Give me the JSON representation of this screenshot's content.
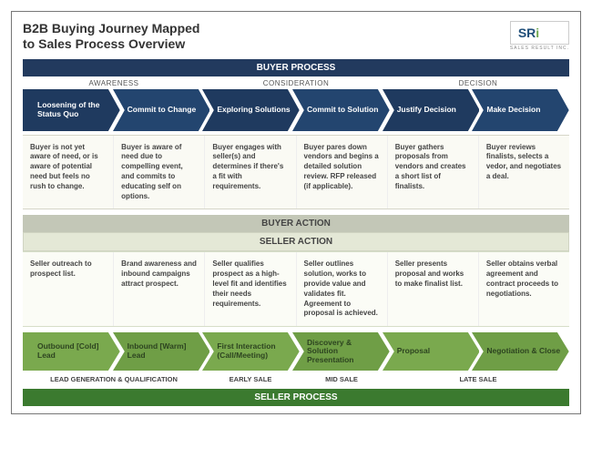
{
  "title_line1": "B2B Buying Journey Mapped",
  "title_line2": "to Sales Process Overview",
  "logo": {
    "text_dark": "SR",
    "text_accent": "i",
    "sub": "SALES RESULT INC."
  },
  "bars": {
    "buyer_process": "BUYER PROCESS",
    "buyer_action": "BUYER ACTION",
    "seller_action": "SELLER ACTION",
    "seller_process": "SELLER PROCESS"
  },
  "buyer_phases": [
    "AWARENESS",
    "CONSIDERATION",
    "DECISION"
  ],
  "buyer_stages": [
    {
      "label": "Loosening of the Status Quo",
      "fill": "#1f3a5f"
    },
    {
      "label": "Commit to Change",
      "fill": "#23456f"
    },
    {
      "label": "Exploring Solutions",
      "fill": "#1f3a5f"
    },
    {
      "label": "Commit to Solution",
      "fill": "#23456f"
    },
    {
      "label": "Justify Decision",
      "fill": "#1f3a5f"
    },
    {
      "label": "Make Decision",
      "fill": "#23456f"
    }
  ],
  "buyer_desc": [
    "Buyer is not yet aware of need, or is aware of potential need but feels no rush to change.",
    "Buyer is aware of need due to compelling event, and commits to educating self on options.",
    "Buyer engages with seller(s) and determines if there's a fit with requirements.",
    "Buyer pares down vendors and begins a detailed solution review. RFP released (if applicable).",
    "Buyer gathers proposals from vendors and creates a short list of finalists.",
    "Buyer reviews finalists, selects a vedor, and negotiates a deal."
  ],
  "seller_desc": [
    "Seller outreach to prospect list.",
    "Brand awareness and inbound campaigns attract prospect.",
    "Seller qualifies prospect as a high-level fit and identifies their needs requirements.",
    "Seller outlines solution, works to provide value and validates fit. Agreement to proposal is achieved.",
    "Seller presents proposal and works to make finalist list.",
    "Seller obtains verbal agreement and contract proceeds to negotiations."
  ],
  "seller_stages": [
    {
      "label": "Outbound [Cold] Lead",
      "fill": "#7aa94e"
    },
    {
      "label": "Inbound [Warm] Lead",
      "fill": "#6f9e46"
    },
    {
      "label": "First Interaction (Call/Meeting)",
      "fill": "#7aa94e"
    },
    {
      "label": "Discovery & Solution Presentation",
      "fill": "#6f9e46"
    },
    {
      "label": "Proposal",
      "fill": "#7aa94e"
    },
    {
      "label": "Negotiation & Close",
      "fill": "#6f9e46"
    }
  ],
  "seller_phases": [
    "LEAD GENERATION & QUALIFICATION",
    "EARLY SALE",
    "MID SALE",
    "LATE SALE"
  ],
  "seller_phase_spans": [
    2,
    1,
    1,
    2
  ],
  "chevron_textcolor_buyer": "#ffffff",
  "chevron_textcolor_seller": "#2d4420"
}
